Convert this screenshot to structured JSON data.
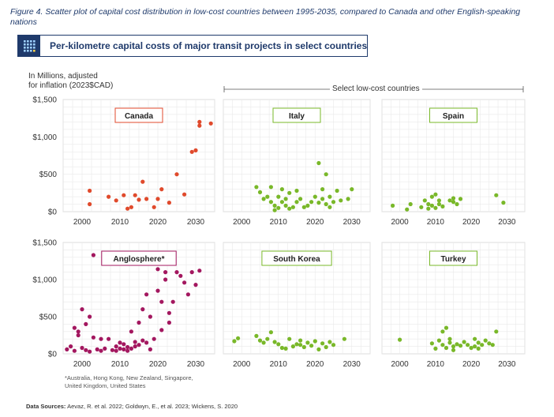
{
  "caption": "Figure 4. Scatter plot of capital cost distribution in low-cost countries between 1995-2035, compared to Canada and other English-speaking nations",
  "banner_title": "Per-kilometre capital costs of major transit projects in select countries",
  "ylabel_line1": "In Millions, adjusted",
  "ylabel_line2": "for inflation (2023$CAD)",
  "select_label": "Select low-cost countries",
  "footnote_line1": "*Australia, Hong Kong, New Zealand, Singapore,",
  "footnote_line2": "United Kingdom, United States",
  "source_bold": "Data Sources:",
  "source_text": " Aevaz, R. et al. 2022; Goldwyn, E., et al. 2023; Wickens, S. 2020",
  "colors": {
    "navy": "#1f3a6b",
    "canada": "#e04a2c",
    "anglo": "#a3175f",
    "low_cost": "#79b829",
    "grid": "#e9e9e9",
    "panel_border": "#c8c8c8"
  },
  "chart_data": [
    {
      "type": "scatter",
      "title": "Canada",
      "color": "#e04a2c",
      "xlim": [
        1995,
        2035
      ],
      "ylim": [
        0,
        1500
      ],
      "xticks": [
        "2000",
        "2010",
        "2020",
        "2030"
      ],
      "yticks": [
        "$0",
        "$500",
        "$1,000",
        "$1,500"
      ],
      "x": [
        2002,
        2002,
        2007,
        2009,
        2011,
        2012,
        2013,
        2014,
        2015,
        2016,
        2017,
        2019,
        2020,
        2021,
        2023,
        2025,
        2027,
        2029,
        2030,
        2031,
        2031,
        2034
      ],
      "y": [
        280,
        100,
        200,
        150,
        220,
        40,
        60,
        220,
        160,
        400,
        170,
        60,
        170,
        300,
        120,
        500,
        230,
        800,
        820,
        1150,
        1200,
        1180
      ]
    },
    {
      "type": "scatter",
      "title": "Italy",
      "color": "#79b829",
      "xlim": [
        1995,
        2035
      ],
      "ylim": [
        0,
        1500
      ],
      "xticks": [
        "2000",
        "2010",
        "2020",
        "2030"
      ],
      "yticks": [],
      "x": [
        2004,
        2005,
        2006,
        2007,
        2008,
        2008,
        2009,
        2009,
        2010,
        2010,
        2011,
        2011,
        2012,
        2012,
        2013,
        2013,
        2014,
        2015,
        2015,
        2016,
        2017,
        2018,
        2019,
        2020,
        2021,
        2021,
        2022,
        2022,
        2023,
        2023,
        2024,
        2024,
        2025,
        2026,
        2027,
        2029,
        2030
      ],
      "y": [
        330,
        260,
        170,
        200,
        130,
        330,
        80,
        20,
        200,
        50,
        130,
        300,
        80,
        170,
        40,
        250,
        60,
        130,
        280,
        170,
        60,
        80,
        130,
        200,
        120,
        650,
        300,
        170,
        100,
        500,
        60,
        200,
        130,
        280,
        150,
        170,
        300
      ]
    },
    {
      "type": "scatter",
      "title": "Spain",
      "color": "#79b829",
      "xlim": [
        1995,
        2035
      ],
      "ylim": [
        0,
        1500
      ],
      "xticks": [
        "2000",
        "2010",
        "2020",
        "2030"
      ],
      "yticks": [],
      "x": [
        1998,
        2002,
        2003,
        2006,
        2007,
        2008,
        2008,
        2009,
        2009,
        2010,
        2010,
        2011,
        2011,
        2012,
        2014,
        2015,
        2015,
        2016,
        2017,
        2027,
        2029
      ],
      "y": [
        80,
        30,
        100,
        60,
        150,
        40,
        100,
        80,
        200,
        50,
        230,
        100,
        150,
        70,
        150,
        130,
        180,
        100,
        170,
        220,
        120
      ]
    },
    {
      "type": "scatter",
      "title": "Anglosphere*",
      "color": "#a3175f",
      "xlim": [
        1995,
        2035
      ],
      "ylim": [
        0,
        1500
      ],
      "xticks": [
        "2000",
        "2010",
        "2020",
        "2030"
      ],
      "yticks": [
        "$0",
        "$500",
        "$1,000",
        "$1,500"
      ],
      "x": [
        1996,
        1997,
        1998,
        1998,
        1999,
        1999,
        2000,
        2000,
        2001,
        2001,
        2002,
        2002,
        2003,
        2003,
        2004,
        2005,
        2005,
        2006,
        2007,
        2008,
        2009,
        2009,
        2010,
        2010,
        2011,
        2011,
        2012,
        2012,
        2013,
        2013,
        2014,
        2014,
        2015,
        2015,
        2016,
        2016,
        2017,
        2017,
        2018,
        2018,
        2019,
        2020,
        2020,
        2021,
        2021,
        2022,
        2022,
        2023,
        2023,
        2024,
        2025,
        2026,
        2027,
        2028,
        2029,
        2030,
        2031
      ],
      "y": [
        60,
        100,
        350,
        40,
        300,
        250,
        600,
        80,
        400,
        50,
        500,
        30,
        1330,
        220,
        60,
        200,
        40,
        70,
        200,
        50,
        100,
        40,
        70,
        150,
        60,
        130,
        90,
        40,
        70,
        300,
        160,
        100,
        420,
        120,
        600,
        180,
        800,
        150,
        500,
        60,
        200,
        1140,
        850,
        700,
        320,
        1100,
        1000,
        420,
        550,
        700,
        1100,
        1050,
        960,
        800,
        1100,
        930,
        1120
      ]
    },
    {
      "type": "scatter",
      "title": "South Korea",
      "color": "#79b829",
      "xlim": [
        1995,
        2035
      ],
      "ylim": [
        0,
        1500
      ],
      "xticks": [
        "2000",
        "2010",
        "2020",
        "2030"
      ],
      "yticks": [],
      "x": [
        1998,
        1999,
        2004,
        2005,
        2006,
        2007,
        2008,
        2009,
        2010,
        2011,
        2012,
        2013,
        2014,
        2015,
        2016,
        2016,
        2017,
        2018,
        2019,
        2020,
        2021,
        2022,
        2023,
        2024,
        2025,
        2028
      ],
      "y": [
        170,
        210,
        240,
        180,
        150,
        200,
        290,
        160,
        130,
        80,
        70,
        200,
        100,
        130,
        180,
        120,
        90,
        150,
        110,
        170,
        60,
        140,
        90,
        160,
        120,
        200
      ]
    },
    {
      "type": "scatter",
      "title": "Turkey",
      "color": "#79b829",
      "xlim": [
        1995,
        2035
      ],
      "ylim": [
        0,
        1500
      ],
      "xticks": [
        "2000",
        "2010",
        "2020",
        "2030"
      ],
      "yticks": [],
      "x": [
        2000,
        2009,
        2010,
        2011,
        2012,
        2012,
        2013,
        2013,
        2014,
        2014,
        2015,
        2015,
        2016,
        2017,
        2018,
        2019,
        2020,
        2021,
        2021,
        2022,
        2022,
        2023,
        2024,
        2025,
        2026,
        2027
      ],
      "y": [
        190,
        140,
        70,
        180,
        120,
        300,
        80,
        350,
        150,
        200,
        100,
        50,
        130,
        110,
        160,
        120,
        80,
        200,
        100,
        150,
        70,
        120,
        180,
        140,
        120,
        300
      ]
    }
  ]
}
